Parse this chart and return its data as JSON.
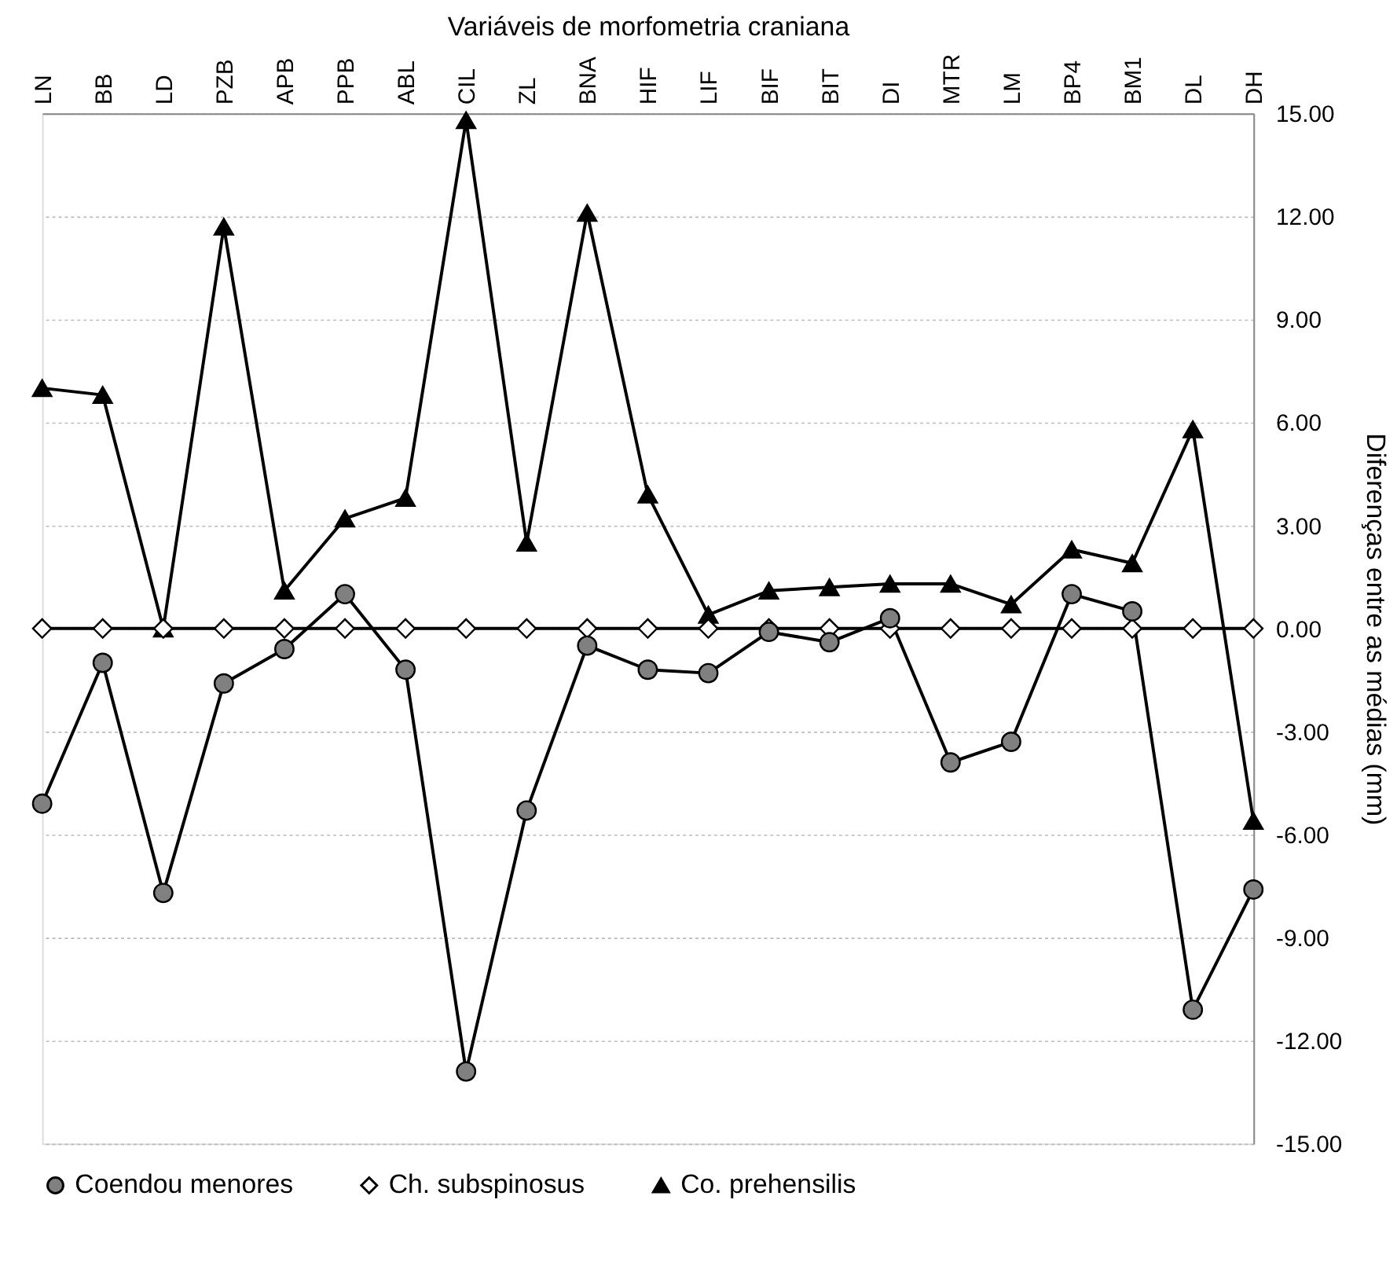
{
  "chart_data": {
    "type": "line",
    "xlabel": "Variáveis de morfometria craniana",
    "ylabel": "Diferenças entre as médias (mm)",
    "categories": [
      "LN",
      "BB",
      "LD",
      "PZB",
      "APB",
      "PPB",
      "ABL",
      "CIL",
      "ZL",
      "BNA",
      "HIF",
      "LIF",
      "BIF",
      "BIT",
      "DI",
      "MTR",
      "LM",
      "BP4",
      "BM1",
      "DL",
      "DH"
    ],
    "series": [
      {
        "name": "Coendou menores",
        "color": "#808080",
        "marker": "circle",
        "values": [
          -5.1,
          -1.0,
          -7.7,
          -1.6,
          -0.6,
          1.0,
          -1.2,
          -12.9,
          -5.3,
          -0.5,
          -1.2,
          -1.3,
          -0.1,
          -0.4,
          0.3,
          -3.9,
          -3.3,
          1.0,
          0.5,
          -11.1,
          -7.6
        ]
      },
      {
        "name": "Ch. subspinosus",
        "color": "#ffffff",
        "marker": "diamond",
        "values": [
          0,
          0,
          0,
          0,
          0,
          0,
          0,
          0,
          0,
          0,
          0,
          0,
          0,
          0,
          0,
          0,
          0,
          0,
          0,
          0,
          0
        ]
      },
      {
        "name": "Co. prehensilis",
        "color": "#000000",
        "marker": "triangle",
        "values": [
          7.0,
          6.8,
          0.0,
          11.7,
          1.1,
          3.2,
          3.8,
          14.8,
          2.5,
          12.1,
          3.9,
          0.4,
          1.1,
          1.2,
          1.3,
          1.3,
          0.7,
          2.3,
          1.9,
          5.8,
          -5.6
        ]
      }
    ],
    "ylim": [
      -15,
      15
    ],
    "yticks": [
      {
        "value": -15,
        "label": "-15.00"
      },
      {
        "value": -12,
        "label": "-12.00"
      },
      {
        "value": -9,
        "label": "-9.00"
      },
      {
        "value": -6,
        "label": "-6.00"
      },
      {
        "value": -3,
        "label": "-3.00"
      },
      {
        "value": 0,
        "label": "0.00"
      },
      {
        "value": 3,
        "label": "3.00"
      },
      {
        "value": 6,
        "label": "6.00"
      },
      {
        "value": 9,
        "label": "9.00"
      },
      {
        "value": 12,
        "label": "12.00"
      },
      {
        "value": 15,
        "label": "15.00"
      }
    ],
    "grid": "y",
    "legend": "bottom",
    "line_style": "solid"
  }
}
